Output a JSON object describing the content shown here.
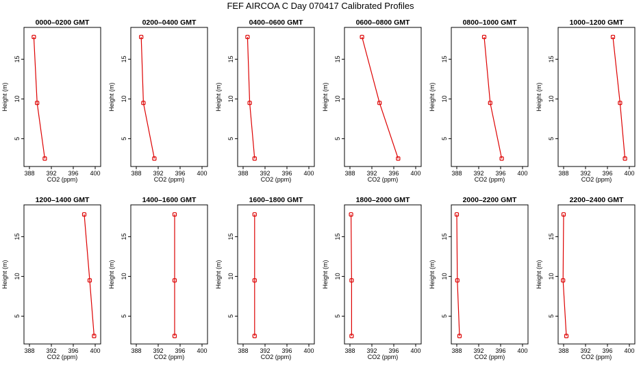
{
  "figure": {
    "title": "FEF AIRCOA C  Day 070417  Calibrated Profiles"
  },
  "colors": {
    "series": "#dd0000",
    "axes": "#000000",
    "background": "#ffffff"
  },
  "chart_data": [
    {
      "type": "line",
      "title": "0000–0200 GMT",
      "xlabel": "CO2 (ppm)",
      "ylabel": "Height (m)",
      "xlim": [
        387,
        401
      ],
      "ylim": [
        1.5,
        19
      ],
      "xticks": [
        388,
        392,
        396,
        400
      ],
      "yticks": [
        5,
        10,
        15
      ],
      "grid": false,
      "x": [
        390.8,
        389.4,
        388.8
      ],
      "y": [
        2.5,
        9.5,
        17.8
      ]
    },
    {
      "type": "line",
      "title": "0200–0400 GMT",
      "xlabel": "CO2 (ppm)",
      "ylabel": "Height (m)",
      "xlim": [
        387,
        401
      ],
      "ylim": [
        1.5,
        19
      ],
      "xticks": [
        388,
        392,
        396,
        400
      ],
      "yticks": [
        5,
        10,
        15
      ],
      "grid": false,
      "x": [
        391.3,
        389.3,
        388.9
      ],
      "y": [
        2.5,
        9.5,
        17.8
      ]
    },
    {
      "type": "line",
      "title": "0400–0600 GMT",
      "xlabel": "CO2 (ppm)",
      "ylabel": "Height (m)",
      "xlim": [
        387,
        401
      ],
      "ylim": [
        1.5,
        19
      ],
      "xticks": [
        388,
        392,
        396,
        400
      ],
      "yticks": [
        5,
        10,
        15
      ],
      "grid": false,
      "x": [
        390.1,
        389.2,
        388.8
      ],
      "y": [
        2.5,
        9.5,
        17.8
      ]
    },
    {
      "type": "line",
      "title": "0600–0800 GMT",
      "xlabel": "CO2 (ppm)",
      "ylabel": "Height (m)",
      "xlim": [
        387,
        401
      ],
      "ylim": [
        1.5,
        19
      ],
      "xticks": [
        388,
        392,
        396,
        400
      ],
      "yticks": [
        5,
        10,
        15
      ],
      "grid": false,
      "x": [
        396.8,
        393.4,
        390.2
      ],
      "y": [
        2.5,
        9.5,
        17.8
      ]
    },
    {
      "type": "line",
      "title": "0800–1000 GMT",
      "xlabel": "CO2 (ppm)",
      "ylabel": "Height (m)",
      "xlim": [
        387,
        401
      ],
      "ylim": [
        1.5,
        19
      ],
      "xticks": [
        388,
        392,
        396,
        400
      ],
      "yticks": [
        5,
        10,
        15
      ],
      "grid": false,
      "x": [
        396.2,
        394.1,
        393.0
      ],
      "y": [
        2.5,
        9.5,
        17.8
      ]
    },
    {
      "type": "line",
      "title": "1000–1200 GMT",
      "xlabel": "CO2 (ppm)",
      "ylabel": "Height (m)",
      "xlim": [
        387,
        401
      ],
      "ylim": [
        1.5,
        19
      ],
      "xticks": [
        388,
        392,
        396,
        400
      ],
      "yticks": [
        5,
        10,
        15
      ],
      "grid": false,
      "x": [
        399.2,
        398.3,
        397.0
      ],
      "y": [
        2.5,
        9.5,
        17.8
      ]
    },
    {
      "type": "line",
      "title": "1200–1400 GMT",
      "xlabel": "CO2 (ppm)",
      "ylabel": "Height (m)",
      "xlim": [
        387,
        401
      ],
      "ylim": [
        1.5,
        19
      ],
      "xticks": [
        388,
        392,
        396,
        400
      ],
      "yticks": [
        5,
        10,
        15
      ],
      "grid": false,
      "x": [
        399.8,
        399.0,
        398.0
      ],
      "y": [
        2.5,
        9.5,
        17.8
      ]
    },
    {
      "type": "line",
      "title": "1400–1600 GMT",
      "xlabel": "CO2 (ppm)",
      "ylabel": "Height (m)",
      "xlim": [
        387,
        401
      ],
      "ylim": [
        1.5,
        19
      ],
      "xticks": [
        388,
        392,
        396,
        400
      ],
      "yticks": [
        5,
        10,
        15
      ],
      "grid": false,
      "x": [
        395.0,
        395.0,
        395.0
      ],
      "y": [
        2.5,
        9.5,
        17.8
      ]
    },
    {
      "type": "line",
      "title": "1600–1800 GMT",
      "xlabel": "CO2 (ppm)",
      "ylabel": "Height (m)",
      "xlim": [
        387,
        401
      ],
      "ylim": [
        1.5,
        19
      ],
      "xticks": [
        388,
        392,
        396,
        400
      ],
      "yticks": [
        5,
        10,
        15
      ],
      "grid": false,
      "x": [
        390.1,
        390.1,
        390.1
      ],
      "y": [
        2.5,
        9.5,
        17.8
      ]
    },
    {
      "type": "line",
      "title": "1800–2000 GMT",
      "xlabel": "CO2 (ppm)",
      "ylabel": "Height (m)",
      "xlim": [
        387,
        401
      ],
      "ylim": [
        1.5,
        19
      ],
      "xticks": [
        388,
        392,
        396,
        400
      ],
      "yticks": [
        5,
        10,
        15
      ],
      "grid": false,
      "x": [
        388.3,
        388.3,
        388.2
      ],
      "y": [
        2.5,
        9.5,
        17.8
      ]
    },
    {
      "type": "line",
      "title": "2000–2200 GMT",
      "xlabel": "CO2 (ppm)",
      "ylabel": "Height (m)",
      "xlim": [
        387,
        401
      ],
      "ylim": [
        1.5,
        19
      ],
      "xticks": [
        388,
        392,
        396,
        400
      ],
      "yticks": [
        5,
        10,
        15
      ],
      "grid": false,
      "x": [
        388.5,
        388.1,
        388.0
      ],
      "y": [
        2.5,
        9.5,
        17.8
      ]
    },
    {
      "type": "line",
      "title": "2200–2400 GMT",
      "xlabel": "CO2 (ppm)",
      "ylabel": "Height (m)",
      "xlim": [
        387,
        401
      ],
      "ylim": [
        1.5,
        19
      ],
      "xticks": [
        388,
        392,
        396,
        400
      ],
      "yticks": [
        5,
        10,
        15
      ],
      "grid": false,
      "x": [
        388.5,
        387.9,
        388.0
      ],
      "y": [
        2.5,
        9.5,
        17.8
      ]
    }
  ]
}
